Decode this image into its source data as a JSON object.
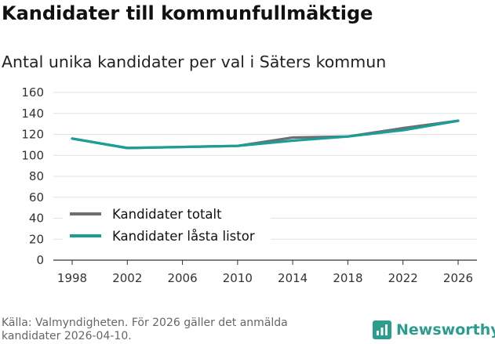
{
  "header": {
    "title": "Kandidater till kommunfullmäktige",
    "subtitle": "Antal unika kandidater per val i Säters kommun"
  },
  "footer": {
    "source": "Källa: Valmyndigheten. För 2026 gäller det anmälda kandidater 2026-04-10.",
    "brand": "Newsworthy"
  },
  "colors": {
    "series_total": "#6e6e73",
    "series_locked": "#1a9e96",
    "grid": "#e2e2e2",
    "brand": "#2a9d8f"
  },
  "chart_data": {
    "type": "line",
    "title": "Antal unika kandidater per val i Säters kommun",
    "xlabel": "",
    "ylabel": "",
    "x": [
      1998,
      2002,
      2006,
      2010,
      2014,
      2018,
      2022,
      2026
    ],
    "ylim": [
      0,
      160
    ],
    "yticks": [
      0,
      20,
      40,
      60,
      80,
      100,
      120,
      140,
      160
    ],
    "grid": true,
    "legend_position": "bottom-left",
    "series": [
      {
        "name": "Kandidater totalt",
        "color": "#6e6e73",
        "values": [
          116,
          107,
          108,
          109,
          117,
          118,
          126,
          133
        ]
      },
      {
        "name": "Kandidater låsta listor",
        "color": "#1a9e96",
        "values": [
          116,
          107,
          108,
          109,
          114,
          118,
          124,
          133
        ]
      }
    ]
  }
}
